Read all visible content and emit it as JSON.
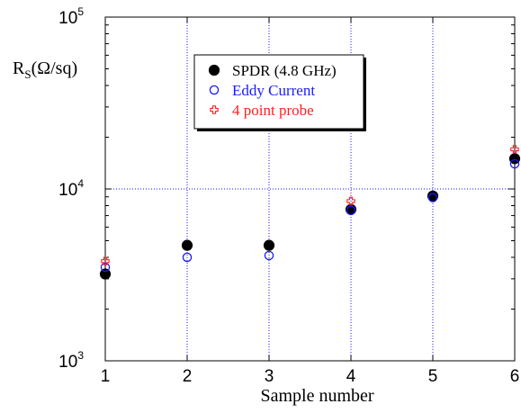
{
  "chart_data": {
    "type": "scatter",
    "xlabel": "Sample number",
    "ylabel": {
      "main": "R",
      "subscript": "S",
      "unit": "(Ω/sq)"
    },
    "xlim": [
      1,
      6
    ],
    "ylim": [
      1000,
      100000
    ],
    "yscale": "log",
    "x_ticks": [
      "1",
      "2",
      "3",
      "4",
      "5",
      "6"
    ],
    "y_ticks": [
      {
        "base": "10",
        "exp": "3",
        "value": 1000
      },
      {
        "base": "10",
        "exp": "4",
        "value": 10000
      },
      {
        "base": "10",
        "exp": "5",
        "value": 100000
      }
    ],
    "grid": true,
    "legend_position": "top-center",
    "series": [
      {
        "name": "SPDR (4.8 GHz)",
        "marker": "filled-circle",
        "color": "#000000",
        "x": [
          1,
          2,
          3,
          4,
          5,
          6
        ],
        "y": [
          3200,
          4700,
          4700,
          7600,
          9100,
          15000
        ]
      },
      {
        "name": "Eddy Current",
        "marker": "open-circle",
        "color": "#1a1aff",
        "x": [
          1,
          2,
          3,
          4,
          5,
          6
        ],
        "y": [
          3500,
          4000,
          4100,
          7500,
          8900,
          14000
        ]
      },
      {
        "name": "4 point probe",
        "marker": "open-plus",
        "color": "#ff2020",
        "x": [
          1,
          4,
          6
        ],
        "y": [
          3800,
          8500,
          17000
        ]
      }
    ]
  }
}
